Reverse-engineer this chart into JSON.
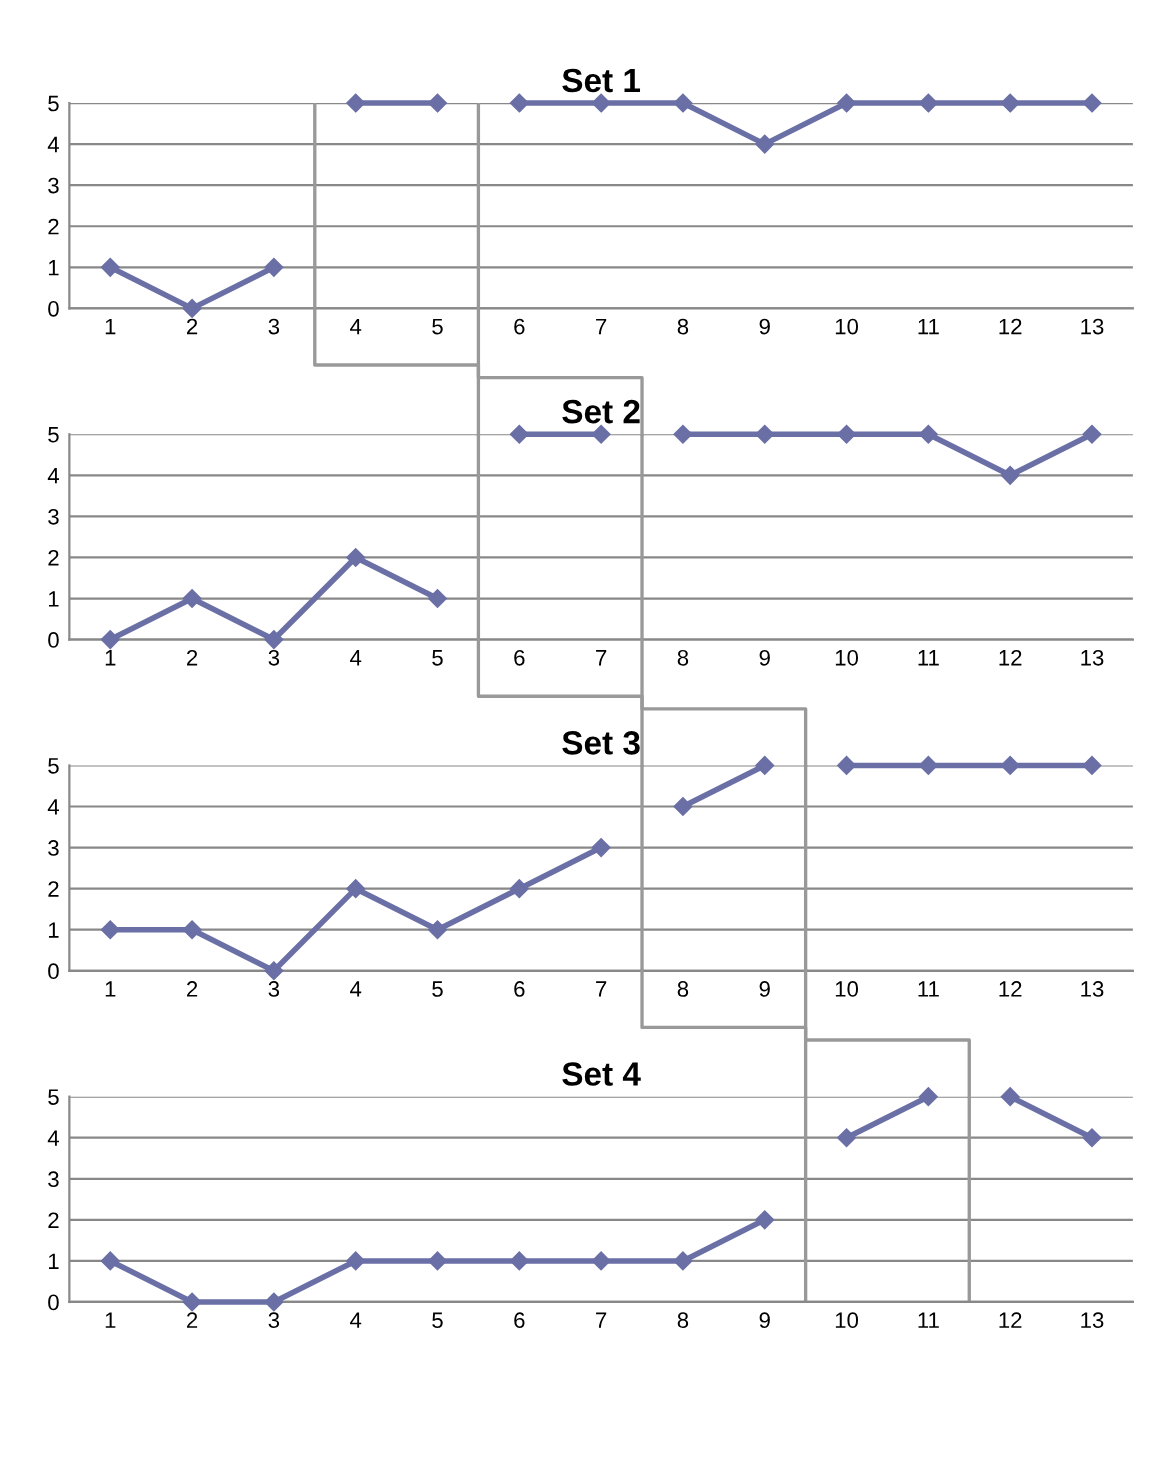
{
  "chart_data": [
    {
      "type": "line",
      "title": "Set 1",
      "xlim": [
        0.5,
        13.5
      ],
      "xticks": [
        1,
        2,
        3,
        4,
        5,
        6,
        7,
        8,
        9,
        10,
        11,
        12,
        13
      ],
      "ylim": [
        0,
        5
      ],
      "yticks": [
        0,
        1,
        2,
        3,
        4,
        5
      ],
      "grid": "y",
      "marker": "diamond",
      "line_style": "solid",
      "series": [
        {
          "color": "#6a6fa6",
          "x": [
            1,
            2,
            3
          ],
          "values": [
            1,
            0,
            1
          ]
        },
        {
          "color": "#6a6fa6",
          "x": [
            4,
            5
          ],
          "values": [
            5,
            5
          ]
        },
        {
          "color": "#6a6fa6",
          "x": [
            6,
            7,
            8,
            9,
            10,
            11,
            12,
            13
          ],
          "values": [
            5,
            5,
            5,
            4,
            5,
            5,
            5,
            5
          ]
        }
      ],
      "ref_lines": [
        {
          "axis": "x",
          "value": 3.5,
          "color": "#999999"
        },
        {
          "axis": "x",
          "value": 5.5,
          "color": "#999999"
        }
      ]
    },
    {
      "type": "line",
      "title": "Set 2",
      "xlim": [
        0.5,
        13.5
      ],
      "xticks": [
        1,
        2,
        3,
        4,
        5,
        6,
        7,
        8,
        9,
        10,
        11,
        12,
        13
      ],
      "ylim": [
        0,
        5
      ],
      "yticks": [
        0,
        1,
        2,
        3,
        4,
        5
      ],
      "grid": "y",
      "marker": "diamond",
      "line_style": "solid",
      "series": [
        {
          "color": "#6a6fa6",
          "x": [
            1,
            2,
            3,
            4,
            5
          ],
          "values": [
            0,
            1,
            0,
            2,
            1
          ]
        },
        {
          "color": "#6a6fa6",
          "x": [
            6,
            7
          ],
          "values": [
            5,
            5
          ]
        },
        {
          "color": "#6a6fa6",
          "x": [
            8,
            9,
            10,
            11,
            12,
            13
          ],
          "values": [
            5,
            5,
            5,
            5,
            4,
            5
          ]
        }
      ],
      "ref_lines": [
        {
          "axis": "x",
          "value": 5.5,
          "color": "#999999"
        },
        {
          "axis": "x",
          "value": 7.5,
          "color": "#999999"
        }
      ]
    },
    {
      "type": "line",
      "title": "Set 3",
      "xlim": [
        0.5,
        13.5
      ],
      "xticks": [
        1,
        2,
        3,
        4,
        5,
        6,
        7,
        8,
        9,
        10,
        11,
        12,
        13
      ],
      "ylim": [
        0,
        5
      ],
      "yticks": [
        0,
        1,
        2,
        3,
        4,
        5
      ],
      "grid": "y",
      "marker": "diamond",
      "line_style": "solid",
      "series": [
        {
          "color": "#6a6fa6",
          "x": [
            1,
            2,
            3,
            4,
            5,
            6,
            7
          ],
          "values": [
            1,
            1,
            0,
            2,
            1,
            2,
            3
          ]
        },
        {
          "color": "#6a6fa6",
          "x": [
            8,
            9
          ],
          "values": [
            4,
            5
          ]
        },
        {
          "color": "#6a6fa6",
          "x": [
            10,
            11,
            12,
            13
          ],
          "values": [
            5,
            5,
            5,
            5
          ]
        }
      ],
      "ref_lines": [
        {
          "axis": "x",
          "value": 7.5,
          "color": "#999999"
        },
        {
          "axis": "x",
          "value": 9.5,
          "color": "#999999"
        }
      ]
    },
    {
      "type": "line",
      "title": "Set 4",
      "xlim": [
        0.5,
        13.5
      ],
      "xticks": [
        1,
        2,
        3,
        4,
        5,
        6,
        7,
        8,
        9,
        10,
        11,
        12,
        13
      ],
      "ylim": [
        0,
        5
      ],
      "yticks": [
        0,
        1,
        2,
        3,
        4,
        5
      ],
      "grid": "y",
      "marker": "diamond",
      "line_style": "solid",
      "series": [
        {
          "color": "#6a6fa6",
          "x": [
            1,
            2,
            3,
            4,
            5,
            6,
            7,
            8,
            9
          ],
          "values": [
            1,
            0,
            0,
            1,
            1,
            1,
            1,
            1,
            2
          ]
        },
        {
          "color": "#6a6fa6",
          "x": [
            10,
            11
          ],
          "values": [
            4,
            5
          ]
        },
        {
          "color": "#6a6fa6",
          "x": [
            12,
            13
          ],
          "values": [
            5,
            4
          ]
        }
      ],
      "ref_lines": [
        {
          "axis": "x",
          "value": 9.5,
          "color": "#999999"
        },
        {
          "axis": "x",
          "value": 11.5,
          "color": "#999999"
        }
      ]
    }
  ]
}
